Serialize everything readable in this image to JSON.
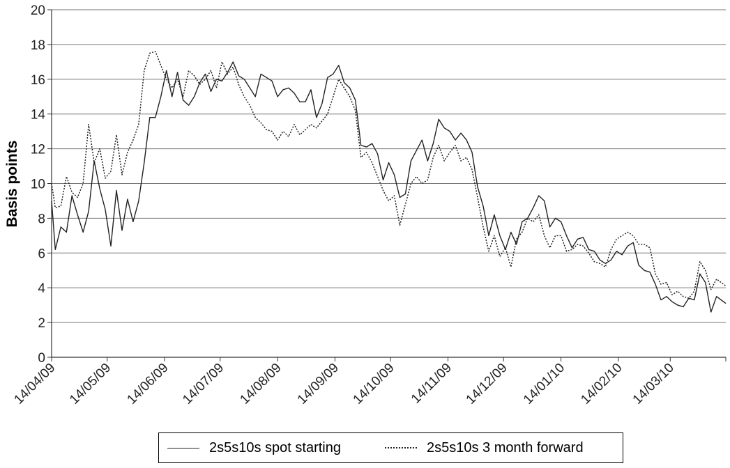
{
  "chart_data": {
    "type": "line",
    "title": "",
    "ylabel": "Basis points",
    "xlabel": "",
    "ylim": [
      0,
      20
    ],
    "yticks": [
      0,
      2,
      4,
      6,
      8,
      10,
      12,
      14,
      16,
      18,
      20
    ],
    "xlim": [
      "2009-04-14",
      "2010-04-13"
    ],
    "xtick_labels": [
      "14/04/09",
      "14/05/09",
      "14/06/09",
      "14/07/09",
      "14/08/09",
      "14/09/09",
      "14/10/09",
      "14/11/09",
      "14/12/09",
      "14/01/10",
      "14/02/10",
      "14/03/10"
    ],
    "xtick_dates": [
      "2009-04-14",
      "2009-05-14",
      "2009-06-14",
      "2009-07-14",
      "2009-08-14",
      "2009-09-14",
      "2009-10-14",
      "2009-11-14",
      "2009-12-14",
      "2010-01-14",
      "2010-02-14",
      "2010-03-14"
    ],
    "grid": "horizontal",
    "legend_position": "bottom",
    "series": [
      {
        "name": "2s5s10s spot starting",
        "style": "solid",
        "color": "#222222",
        "x": [
          "2009-04-14",
          "2009-04-16",
          "2009-04-19",
          "2009-04-22",
          "2009-04-25",
          "2009-04-28",
          "2009-05-01",
          "2009-05-04",
          "2009-05-07",
          "2009-05-10",
          "2009-05-13",
          "2009-05-16",
          "2009-05-19",
          "2009-05-22",
          "2009-05-25",
          "2009-05-28",
          "2009-05-31",
          "2009-06-03",
          "2009-06-06",
          "2009-06-09",
          "2009-06-12",
          "2009-06-15",
          "2009-06-18",
          "2009-06-21",
          "2009-06-24",
          "2009-06-27",
          "2009-06-30",
          "2009-07-03",
          "2009-07-06",
          "2009-07-09",
          "2009-07-12",
          "2009-07-15",
          "2009-07-18",
          "2009-07-21",
          "2009-07-24",
          "2009-07-27",
          "2009-07-30",
          "2009-08-02",
          "2009-08-05",
          "2009-08-08",
          "2009-08-11",
          "2009-08-14",
          "2009-08-17",
          "2009-08-20",
          "2009-08-23",
          "2009-08-26",
          "2009-08-29",
          "2009-09-01",
          "2009-09-04",
          "2009-09-07",
          "2009-09-10",
          "2009-09-13",
          "2009-09-16",
          "2009-09-19",
          "2009-09-22",
          "2009-09-25",
          "2009-09-28",
          "2009-10-01",
          "2009-10-04",
          "2009-10-07",
          "2009-10-10",
          "2009-10-13",
          "2009-10-16",
          "2009-10-19",
          "2009-10-22",
          "2009-10-25",
          "2009-10-28",
          "2009-10-31",
          "2009-11-03",
          "2009-11-06",
          "2009-11-09",
          "2009-11-12",
          "2009-11-15",
          "2009-11-18",
          "2009-11-21",
          "2009-11-24",
          "2009-11-27",
          "2009-11-30",
          "2009-12-03",
          "2009-12-06",
          "2009-12-09",
          "2009-12-12",
          "2009-12-15",
          "2009-12-18",
          "2009-12-21",
          "2009-12-24",
          "2009-12-27",
          "2009-12-30",
          "2010-01-02",
          "2010-01-05",
          "2010-01-08",
          "2010-01-11",
          "2010-01-14",
          "2010-01-17",
          "2010-01-20",
          "2010-01-23",
          "2010-01-26",
          "2010-01-29",
          "2010-02-01",
          "2010-02-04",
          "2010-02-07",
          "2010-02-10",
          "2010-02-13",
          "2010-02-16",
          "2010-02-19",
          "2010-02-22",
          "2010-02-25",
          "2010-02-28",
          "2010-03-03",
          "2010-03-06",
          "2010-03-09",
          "2010-03-12",
          "2010-03-15",
          "2010-03-18",
          "2010-03-21",
          "2010-03-24",
          "2010-03-27",
          "2010-03-30",
          "2010-04-02",
          "2010-04-05",
          "2010-04-08",
          "2010-04-13"
        ],
        "values": [
          9.0,
          6.2,
          7.5,
          7.2,
          9.3,
          8.2,
          7.2,
          8.4,
          11.3,
          9.7,
          8.5,
          6.4,
          9.6,
          7.3,
          9.1,
          7.8,
          9.0,
          11.2,
          13.8,
          13.8,
          15.0,
          16.5,
          15.0,
          16.4,
          14.8,
          14.5,
          15.0,
          15.8,
          16.3,
          15.3,
          16.0,
          15.9,
          16.4,
          17.0,
          16.2,
          16.0,
          15.5,
          15.0,
          16.3,
          16.1,
          15.9,
          15.0,
          15.4,
          15.5,
          15.2,
          14.7,
          14.7,
          15.4,
          13.8,
          14.6,
          16.1,
          16.3,
          16.8,
          15.8,
          15.5,
          14.8,
          12.2,
          12.1,
          12.3,
          11.7,
          10.2,
          11.2,
          10.5,
          9.2,
          9.4,
          11.3,
          11.9,
          12.5,
          11.3,
          12.3,
          13.7,
          13.2,
          13.0,
          12.5,
          12.9,
          12.5,
          11.8,
          9.8,
          8.7,
          7.0,
          8.2,
          7.0,
          6.2,
          7.2,
          6.5,
          7.8,
          8.0,
          8.6,
          9.3,
          9.0,
          7.5,
          8.0,
          7.8,
          7.0,
          6.3,
          6.8,
          6.9,
          6.2,
          6.1,
          5.6,
          5.4,
          5.6,
          6.1,
          5.9,
          6.4,
          6.6,
          5.3,
          5.0,
          4.9,
          4.2,
          3.3,
          3.5,
          3.2,
          3.0,
          2.9,
          3.4,
          3.3,
          4.8,
          4.3,
          2.6,
          3.5,
          3.1
        ]
      },
      {
        "name": "2s5s10s 3 month forward",
        "style": "dotted",
        "color": "#222222",
        "x": [
          "2009-04-14",
          "2009-04-16",
          "2009-04-19",
          "2009-04-22",
          "2009-04-25",
          "2009-04-28",
          "2009-05-01",
          "2009-05-04",
          "2009-05-07",
          "2009-05-10",
          "2009-05-13",
          "2009-05-16",
          "2009-05-19",
          "2009-05-22",
          "2009-05-25",
          "2009-05-28",
          "2009-05-31",
          "2009-06-03",
          "2009-06-06",
          "2009-06-09",
          "2009-06-12",
          "2009-06-15",
          "2009-06-18",
          "2009-06-21",
          "2009-06-24",
          "2009-06-27",
          "2009-06-30",
          "2009-07-03",
          "2009-07-06",
          "2009-07-09",
          "2009-07-12",
          "2009-07-15",
          "2009-07-18",
          "2009-07-21",
          "2009-07-24",
          "2009-07-27",
          "2009-07-30",
          "2009-08-02",
          "2009-08-05",
          "2009-08-08",
          "2009-08-11",
          "2009-08-14",
          "2009-08-17",
          "2009-08-20",
          "2009-08-23",
          "2009-08-26",
          "2009-08-29",
          "2009-09-01",
          "2009-09-04",
          "2009-09-07",
          "2009-09-10",
          "2009-09-13",
          "2009-09-16",
          "2009-09-19",
          "2009-09-22",
          "2009-09-25",
          "2009-09-28",
          "2009-10-01",
          "2009-10-04",
          "2009-10-07",
          "2009-10-10",
          "2009-10-13",
          "2009-10-16",
          "2009-10-19",
          "2009-10-22",
          "2009-10-25",
          "2009-10-28",
          "2009-10-31",
          "2009-11-03",
          "2009-11-06",
          "2009-11-09",
          "2009-11-12",
          "2009-11-15",
          "2009-11-18",
          "2009-11-21",
          "2009-11-24",
          "2009-11-27",
          "2009-11-30",
          "2009-12-03",
          "2009-12-06",
          "2009-12-09",
          "2009-12-12",
          "2009-12-15",
          "2009-12-18",
          "2009-12-21",
          "2009-12-24",
          "2009-12-27",
          "2009-12-30",
          "2010-01-02",
          "2010-01-05",
          "2010-01-08",
          "2010-01-11",
          "2010-01-14",
          "2010-01-17",
          "2010-01-20",
          "2010-01-23",
          "2010-01-26",
          "2010-01-29",
          "2010-02-01",
          "2010-02-04",
          "2010-02-07",
          "2010-02-10",
          "2010-02-13",
          "2010-02-16",
          "2010-02-19",
          "2010-02-22",
          "2010-02-25",
          "2010-02-28",
          "2010-03-03",
          "2010-03-06",
          "2010-03-09",
          "2010-03-12",
          "2010-03-15",
          "2010-03-18",
          "2010-03-21",
          "2010-03-24",
          "2010-03-27",
          "2010-03-30",
          "2010-04-02",
          "2010-04-05",
          "2010-04-08",
          "2010-04-13"
        ],
        "values": [
          10.0,
          8.6,
          8.7,
          10.4,
          9.5,
          9.2,
          10.0,
          13.4,
          11.2,
          12.0,
          10.3,
          10.7,
          12.8,
          10.5,
          11.8,
          12.5,
          13.4,
          16.5,
          17.5,
          17.6,
          16.8,
          16.0,
          15.5,
          16.0,
          15.0,
          16.5,
          16.2,
          15.7,
          16.0,
          16.5,
          15.5,
          17.0,
          16.3,
          16.7,
          15.7,
          15.0,
          14.5,
          13.8,
          13.5,
          13.1,
          13.0,
          12.5,
          13.0,
          12.7,
          13.4,
          12.8,
          13.1,
          13.4,
          13.2,
          13.6,
          14.0,
          15.0,
          16.0,
          15.5,
          15.0,
          14.2,
          11.5,
          11.8,
          11.2,
          10.4,
          9.6,
          9.0,
          9.3,
          7.6,
          8.8,
          10.0,
          10.4,
          10.0,
          10.2,
          11.5,
          12.2,
          11.3,
          11.8,
          12.2,
          11.3,
          11.5,
          10.8,
          9.2,
          7.5,
          6.1,
          7.0,
          5.8,
          6.3,
          5.2,
          6.8,
          7.2,
          8.0,
          7.8,
          8.2,
          7.0,
          6.3,
          7.0,
          7.0,
          6.1,
          6.2,
          6.5,
          6.4,
          6.0,
          5.5,
          5.4,
          5.2,
          6.2,
          6.8,
          7.0,
          7.2,
          7.0,
          6.5,
          6.5,
          6.3,
          4.8,
          4.2,
          4.3,
          3.6,
          3.8,
          3.5,
          3.4,
          3.8,
          5.5,
          5.0,
          3.9,
          4.5,
          4.1
        ]
      }
    ]
  }
}
